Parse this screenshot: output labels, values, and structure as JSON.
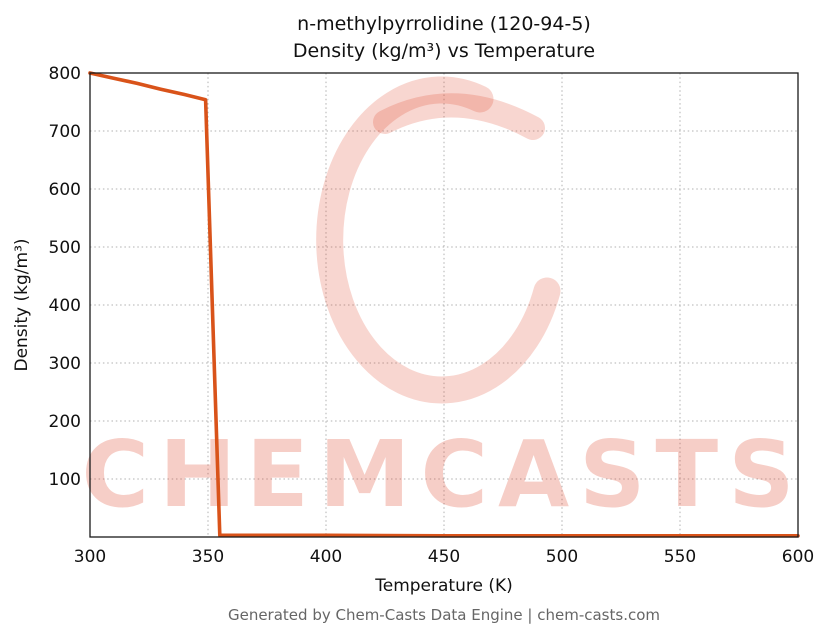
{
  "page": {
    "footer": "Generated by Chem-Casts Data Engine | chem-casts.com",
    "watermark_text": "CHEMCASTS",
    "watermark_color": "#e0452b",
    "watermark_opacity": 0.26
  },
  "chart_data": {
    "type": "line",
    "title": "n-methylpyrrolidine (120-94-5)",
    "subtitle": "Density (kg/m³) vs Temperature",
    "xlabel": "Temperature (K)",
    "ylabel": "Density (kg/m³)",
    "xlim": [
      300,
      600
    ],
    "ylim": [
      0,
      800
    ],
    "xticks": [
      300,
      350,
      400,
      450,
      500,
      550,
      600
    ],
    "yticks": [
      100,
      200,
      300,
      400,
      500,
      600,
      700,
      800
    ],
    "grid": true,
    "grid_color": "#b0b0b0",
    "legend": "none",
    "series": [
      {
        "name": "density",
        "color": "#d9531a",
        "points": [
          [
            300,
            800
          ],
          [
            310,
            791
          ],
          [
            320,
            782
          ],
          [
            330,
            772
          ],
          [
            340,
            763
          ],
          [
            349,
            754
          ],
          [
            355,
            3
          ],
          [
            400,
            3
          ],
          [
            450,
            2
          ],
          [
            500,
            2
          ],
          [
            550,
            2
          ],
          [
            600,
            2
          ]
        ]
      }
    ]
  }
}
